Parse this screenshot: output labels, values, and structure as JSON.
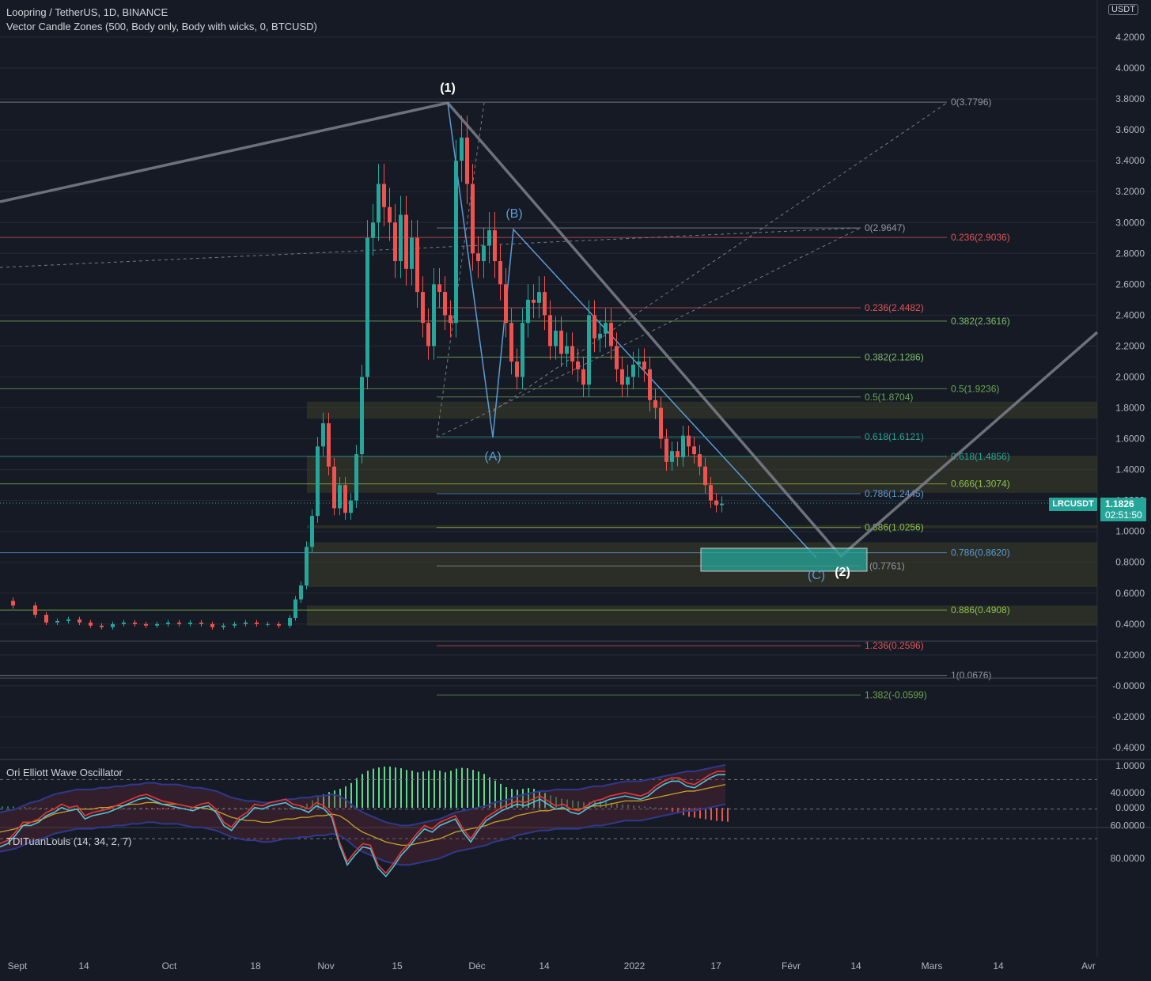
{
  "header": {
    "line1": "Loopring / TetherUS, 1D, BINANCE",
    "line2": "Vector Candle Zones (500, Body only, Body with wicks, 0, BTCUSD)",
    "currency": "USDT"
  },
  "colors": {
    "bg": "#161a25",
    "up": "#26a69a",
    "down": "#ef5350",
    "grid": "#262a36",
    "axis_text": "#b2b5be"
  },
  "chart_data": [
    {
      "type": "candlestick",
      "title": "Loopring / TetherUS, 1D, BINANCE",
      "yaxis_labels": [
        "4.2000",
        "4.0000",
        "3.8000",
        "3.6000",
        "3.4000",
        "3.2000",
        "3.0000",
        "2.8000",
        "2.6000",
        "2.4000",
        "2.2000",
        "2.0000",
        "1.8000",
        "1.6000",
        "1.4000",
        "1.2000",
        "1.0000",
        "0.8000",
        "0.6000",
        "0.4000",
        "0.2000",
        "-0.0000",
        "-0.2000",
        "-0.4000"
      ],
      "xaxis_labels": [
        "Sept",
        "14",
        "Oct",
        "18",
        "Nov",
        "15",
        "Déc",
        "14",
        "2022",
        "17",
        "Févr",
        "14",
        "Mars",
        "14",
        "Avr"
      ],
      "last_price": "1.1826",
      "countdown": "02:51:50",
      "symbol": "LRCUSDT",
      "price_path": [
        [
          2,
          0.55
        ],
        [
          6,
          0.52
        ],
        [
          8,
          0.46
        ],
        [
          10,
          0.41
        ],
        [
          12,
          0.42
        ],
        [
          14,
          0.43
        ],
        [
          16,
          0.41
        ],
        [
          18,
          0.39
        ],
        [
          20,
          0.38
        ],
        [
          22,
          0.4
        ],
        [
          24,
          0.41
        ],
        [
          26,
          0.4
        ],
        [
          28,
          0.39
        ],
        [
          30,
          0.4
        ],
        [
          32,
          0.41
        ],
        [
          34,
          0.4
        ],
        [
          36,
          0.41
        ],
        [
          38,
          0.4
        ],
        [
          40,
          0.38
        ],
        [
          42,
          0.39
        ],
        [
          44,
          0.4
        ],
        [
          46,
          0.41
        ],
        [
          48,
          0.4
        ],
        [
          50,
          0.4
        ],
        [
          52,
          0.39
        ],
        [
          53,
          0.44
        ],
        [
          54,
          0.56
        ],
        [
          55,
          0.65
        ],
        [
          56,
          0.9
        ],
        [
          57,
          1.1
        ],
        [
          58,
          1.55
        ],
        [
          59,
          1.7
        ],
        [
          60,
          1.42
        ],
        [
          61,
          1.15
        ],
        [
          62,
          1.3
        ],
        [
          63,
          1.12
        ],
        [
          64,
          1.2
        ],
        [
          65,
          1.5
        ],
        [
          66,
          2.0
        ],
        [
          67,
          2.9
        ],
        [
          68,
          3.0
        ],
        [
          69,
          3.25
        ],
        [
          70,
          3.1
        ],
        [
          71,
          3.0
        ],
        [
          72,
          2.75
        ],
        [
          73,
          3.05
        ],
        [
          74,
          2.7
        ],
        [
          75,
          2.9
        ],
        [
          76,
          2.55
        ],
        [
          77,
          2.35
        ],
        [
          78,
          2.2
        ],
        [
          79,
          2.6
        ],
        [
          80,
          2.55
        ],
        [
          81,
          2.4
        ],
        [
          82,
          2.35
        ],
        [
          83,
          3.4
        ],
        [
          84,
          3.55
        ],
        [
          85,
          3.25
        ],
        [
          86,
          2.8
        ],
        [
          87,
          2.75
        ],
        [
          88,
          2.85
        ],
        [
          89,
          2.95
        ],
        [
          90,
          2.75
        ],
        [
          91,
          2.6
        ],
        [
          92,
          2.35
        ],
        [
          93,
          2.1
        ],
        [
          94,
          2.0
        ],
        [
          95,
          2.35
        ],
        [
          96,
          2.5
        ],
        [
          97,
          2.48
        ],
        [
          98,
          2.55
        ],
        [
          99,
          2.4
        ],
        [
          100,
          2.2
        ],
        [
          101,
          2.3
        ],
        [
          102,
          2.15
        ],
        [
          103,
          2.2
        ],
        [
          104,
          2.1
        ],
        [
          105,
          2.05
        ],
        [
          106,
          1.95
        ],
        [
          107,
          2.4
        ],
        [
          108,
          2.25
        ],
        [
          109,
          2.28
        ],
        [
          110,
          2.35
        ],
        [
          111,
          2.2
        ],
        [
          112,
          2.05
        ],
        [
          113,
          1.95
        ],
        [
          114,
          2.0
        ],
        [
          115,
          2.08
        ],
        [
          116,
          2.1
        ],
        [
          117,
          2.05
        ],
        [
          118,
          1.85
        ],
        [
          119,
          1.8
        ],
        [
          120,
          1.6
        ],
        [
          121,
          1.45
        ],
        [
          122,
          1.52
        ],
        [
          123,
          1.48
        ],
        [
          124,
          1.62
        ],
        [
          125,
          1.55
        ],
        [
          126,
          1.5
        ],
        [
          127,
          1.42
        ],
        [
          128,
          1.3
        ],
        [
          129,
          1.2
        ],
        [
          130,
          1.17
        ],
        [
          131,
          1.18
        ]
      ]
    },
    {
      "type": "bar",
      "title": "Ori Elliott Wave Oscillator",
      "yaxis_labels": [
        "1.0000",
        "0.0000"
      ],
      "values": [
        0.03,
        0.03,
        0.03,
        0.02,
        0.02,
        0.01,
        0.01,
        0.0,
        0.0,
        0.0,
        0.0,
        0.0,
        0.0,
        0.0,
        0.0,
        0.0,
        0.0,
        0.0,
        0.0,
        0.0,
        0.0,
        0.0,
        0.0,
        0.0,
        0.0,
        0.0,
        -0.02,
        -0.02,
        -0.01,
        -0.01,
        -0.01,
        -0.01,
        -0.01,
        0.0,
        0.0,
        0.0,
        0.0,
        0.0,
        0.0,
        0.0,
        0.0,
        0.0,
        0.0,
        0.0,
        0.0,
        0.0,
        0.0,
        0.0,
        0.0,
        0.0,
        0.0,
        0.0,
        0.0,
        0.02,
        0.05,
        0.1,
        0.18,
        0.26,
        0.32,
        0.38,
        0.42,
        0.46,
        0.52,
        0.6,
        0.72,
        0.82,
        0.9,
        0.95,
        0.98,
        1.0,
        1.0,
        0.98,
        0.96,
        0.92,
        0.9,
        0.86,
        0.88,
        0.9,
        0.92,
        0.9,
        0.86,
        0.9,
        0.95,
        0.97,
        0.96,
        0.92,
        0.88,
        0.82,
        0.74,
        0.66,
        0.58,
        0.5,
        0.46,
        0.44,
        0.46,
        0.48,
        0.46,
        0.42,
        0.36,
        0.3,
        0.26,
        0.22,
        0.2,
        0.18,
        0.16,
        0.14,
        0.14,
        0.15,
        0.16,
        0.15,
        0.12,
        0.1,
        0.08,
        0.07,
        0.05,
        0.04,
        0.03,
        0.02,
        0.01,
        -0.02,
        -0.05,
        -0.1,
        -0.14,
        -0.18,
        -0.22,
        -0.24,
        -0.26,
        -0.28,
        -0.3,
        -0.32,
        -0.33,
        -0.34
      ]
    },
    {
      "type": "line",
      "title": "TDITuanLouis (14, 34, 2, 7)",
      "yaxis_labels": [
        "80.0000",
        "60.0000",
        "40.0000"
      ],
      "series": [
        {
          "values": [
            73,
            71,
            66,
            60,
            60,
            58,
            54,
            52,
            49,
            51,
            50,
            56,
            54,
            53,
            52,
            50,
            48,
            46,
            44,
            43,
            45,
            47,
            48,
            49,
            50,
            51,
            49,
            48,
            52,
            60,
            63,
            57,
            54,
            49,
            50,
            48,
            47,
            46,
            49,
            50,
            52,
            48,
            50,
            55,
            72,
            84,
            78,
            73,
            74,
            86,
            91,
            85,
            78,
            73,
            67,
            62,
            64,
            60,
            58,
            56,
            64,
            70,
            63,
            57,
            54,
            51,
            49,
            47,
            48,
            46,
            44,
            47,
            50,
            49,
            52,
            53,
            50,
            47,
            46,
            44,
            43,
            42,
            43,
            44,
            42,
            38,
            35,
            33,
            33,
            36,
            37,
            34,
            31,
            29,
            29
          ]
        },
        {
          "values": [
            64,
            63,
            62,
            60,
            58,
            57,
            55,
            53,
            52,
            51,
            50,
            50,
            50,
            49,
            49,
            48,
            48,
            47,
            47,
            46,
            46,
            47,
            47,
            47,
            48,
            49,
            49,
            50,
            51,
            53,
            55,
            56,
            57,
            57,
            58,
            58,
            57,
            56,
            56,
            55,
            55,
            54,
            54,
            53,
            54,
            57,
            61,
            64,
            66,
            68,
            70,
            71,
            72,
            72,
            71,
            70,
            69,
            68,
            66,
            64,
            63,
            62,
            61,
            60,
            58,
            57,
            56,
            54,
            53,
            52,
            51,
            51,
            50,
            50,
            50,
            50,
            49,
            48,
            48,
            47,
            46,
            45,
            45,
            45,
            44,
            43,
            42,
            41,
            40,
            39,
            39,
            38,
            37,
            36,
            35
          ]
        }
      ]
    }
  ],
  "fib_labels": [
    "0(3.7796)",
    "0(2.9647)",
    "0.236(2.9036)",
    "0.236(2.4482)",
    "0.382(2.3616)",
    "0.382(2.1286)",
    "0.5(1.9236)",
    "0.5(1.8704)",
    "0.618(1.6121)",
    "0.618(1.4856)",
    "0.666(1.3074)",
    "0.786(1.2445)",
    "0.886(1.0256)",
    "0.786(0.8620)",
    "(0.7761)",
    "0.886(0.4908)",
    "1.236(0.2596)",
    "1(0.0676)",
    "1.382(-0.0599)"
  ],
  "wave_labels": [
    "(1)",
    "(B)",
    "(A)",
    "(C)",
    "(2)"
  ],
  "osc_extra": [
    "1.0000",
    "0.0000"
  ]
}
